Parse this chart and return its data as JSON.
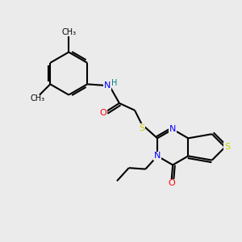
{
  "background_color": "#ebebeb",
  "bond_color": "#000000",
  "bond_width": 1.5,
  "atom_colors": {
    "C": "#000000",
    "N": "#0000ff",
    "O": "#ff0000",
    "S": "#cccc00",
    "H": "#008080"
  },
  "font_size": 8,
  "figsize": [
    3.0,
    3.0
  ],
  "dpi": 100
}
